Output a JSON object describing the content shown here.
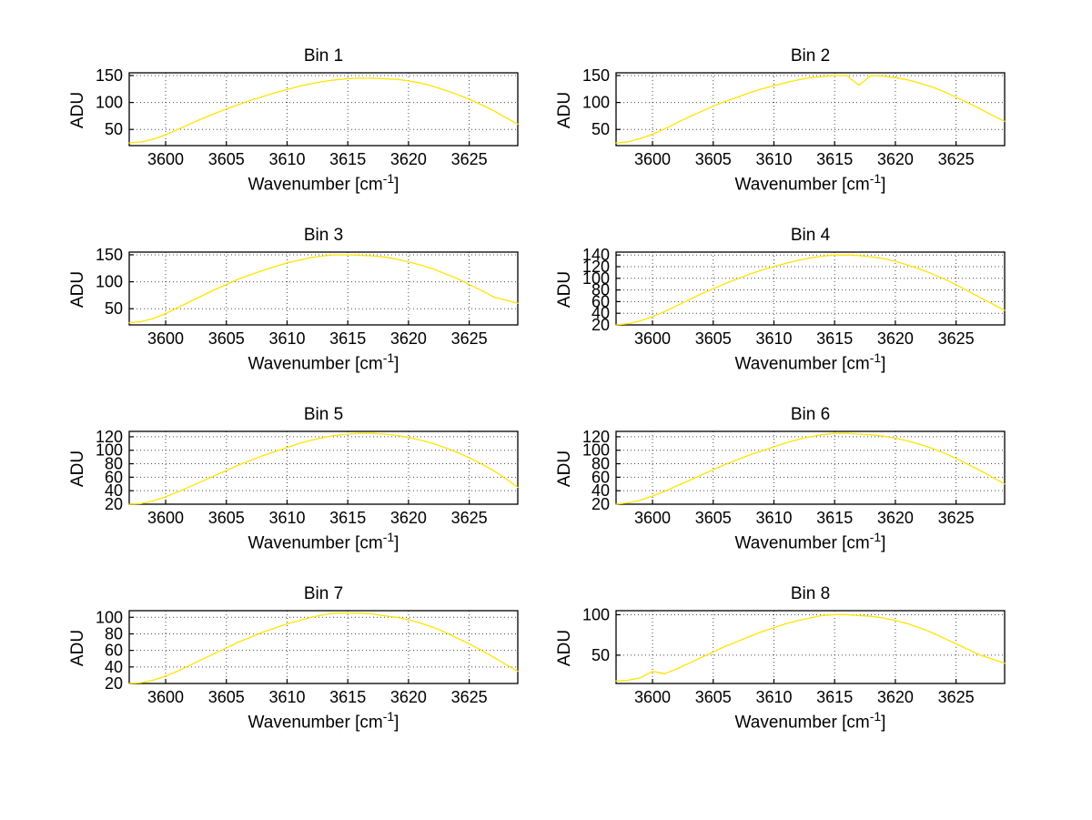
{
  "figure": {
    "background": "#ffffff"
  },
  "labels": {
    "xlabel_prefix": "Wavenumber [cm",
    "xlabel_sup": "-1",
    "xlabel_suffix": "]"
  },
  "chart_data": [
    {
      "type": "line",
      "title": "Bin 1",
      "xlabel": "Wavenumber [cm^-1]",
      "ylabel": "ADU",
      "xlim": [
        3597,
        3629
      ],
      "ylim": [
        20,
        155
      ],
      "xticks": [
        3600,
        3605,
        3610,
        3615,
        3620,
        3625
      ],
      "yticks": [
        50,
        100,
        150
      ],
      "grid": true,
      "line_color": "#ffe400",
      "x": [
        3597,
        3598,
        3599,
        3600,
        3601,
        3602,
        3603,
        3604,
        3605,
        3606,
        3607,
        3608,
        3609,
        3610,
        3611,
        3612,
        3613,
        3614,
        3615,
        3616,
        3617,
        3618,
        3619,
        3620,
        3621,
        3622,
        3623,
        3624,
        3625,
        3626,
        3627,
        3628,
        3629
      ],
      "y": [
        25,
        27,
        32,
        40,
        50,
        60,
        70,
        79,
        88,
        96,
        104,
        111,
        118,
        124,
        130,
        135,
        139,
        142,
        144,
        145,
        145,
        144,
        143,
        140,
        136,
        130,
        123,
        115,
        106,
        96,
        85,
        72,
        60
      ]
    },
    {
      "type": "line",
      "title": "Bin 2",
      "xlabel": "Wavenumber [cm^-1]",
      "ylabel": "ADU",
      "xlim": [
        3597,
        3629
      ],
      "ylim": [
        20,
        155
      ],
      "xticks": [
        3600,
        3605,
        3610,
        3615,
        3620,
        3625
      ],
      "yticks": [
        50,
        100,
        150
      ],
      "grid": true,
      "line_color": "#ffe400",
      "x": [
        3597,
        3598,
        3599,
        3600,
        3601,
        3602,
        3603,
        3604,
        3605,
        3606,
        3607,
        3608,
        3609,
        3610,
        3611,
        3612,
        3613,
        3614,
        3615,
        3616,
        3617,
        3618,
        3619,
        3620,
        3621,
        3622,
        3623,
        3624,
        3625,
        3626,
        3627,
        3628,
        3629
      ],
      "y": [
        25,
        27,
        33,
        41,
        51,
        62,
        73,
        83,
        93,
        102,
        110,
        118,
        125,
        131,
        137,
        142,
        146,
        148,
        150,
        150,
        132,
        150,
        149,
        146,
        142,
        136,
        129,
        120,
        110,
        99,
        88,
        76,
        65
      ]
    },
    {
      "type": "line",
      "title": "Bin 3",
      "xlabel": "Wavenumber [cm^-1]",
      "ylabel": "ADU",
      "xlim": [
        3597,
        3629
      ],
      "ylim": [
        20,
        155
      ],
      "xticks": [
        3600,
        3605,
        3610,
        3615,
        3620,
        3625
      ],
      "yticks": [
        50,
        100,
        150
      ],
      "grid": true,
      "line_color": "#ffe400",
      "x": [
        3597,
        3598,
        3599,
        3600,
        3601,
        3602,
        3603,
        3604,
        3605,
        3606,
        3607,
        3608,
        3609,
        3610,
        3611,
        3612,
        3613,
        3614,
        3615,
        3616,
        3617,
        3618,
        3619,
        3620,
        3621,
        3622,
        3623,
        3624,
        3625,
        3626,
        3627,
        3628,
        3629
      ],
      "y": [
        24,
        26,
        32,
        41,
        52,
        63,
        74,
        85,
        95,
        105,
        113,
        121,
        128,
        135,
        140,
        145,
        148,
        150,
        150,
        149,
        148,
        146,
        142,
        137,
        131,
        124,
        115,
        106,
        95,
        84,
        72,
        66,
        60
      ]
    },
    {
      "type": "line",
      "title": "Bin 4",
      "xlabel": "Wavenumber [cm^-1]",
      "ylabel": "ADU",
      "xlim": [
        3597,
        3629
      ],
      "ylim": [
        20,
        145
      ],
      "xticks": [
        3600,
        3605,
        3610,
        3615,
        3620,
        3625
      ],
      "yticks": [
        20,
        40,
        60,
        80,
        100,
        120,
        140
      ],
      "grid": true,
      "line_color": "#ffe400",
      "x": [
        3597,
        3598,
        3599,
        3600,
        3601,
        3602,
        3603,
        3604,
        3605,
        3606,
        3607,
        3608,
        3609,
        3610,
        3611,
        3612,
        3613,
        3614,
        3615,
        3616,
        3617,
        3618,
        3619,
        3620,
        3621,
        3622,
        3623,
        3624,
        3625,
        3626,
        3627,
        3628,
        3629
      ],
      "y": [
        20,
        22,
        27,
        34,
        43,
        53,
        63,
        73,
        82,
        91,
        99,
        107,
        114,
        120,
        126,
        131,
        135,
        138,
        140,
        140,
        139,
        137,
        134,
        129,
        123,
        116,
        108,
        99,
        89,
        78,
        67,
        56,
        45
      ]
    },
    {
      "type": "line",
      "title": "Bin 5",
      "xlabel": "Wavenumber [cm^-1]",
      "ylabel": "ADU",
      "xlim": [
        3597,
        3629
      ],
      "ylim": [
        20,
        128
      ],
      "xticks": [
        3600,
        3605,
        3610,
        3615,
        3620,
        3625
      ],
      "yticks": [
        20,
        40,
        60,
        80,
        100,
        120
      ],
      "grid": true,
      "line_color": "#ffe400",
      "x": [
        3597,
        3598,
        3599,
        3600,
        3601,
        3602,
        3603,
        3604,
        3605,
        3606,
        3607,
        3608,
        3609,
        3610,
        3611,
        3612,
        3613,
        3614,
        3615,
        3616,
        3617,
        3618,
        3619,
        3620,
        3621,
        3622,
        3623,
        3624,
        3625,
        3626,
        3627,
        3628,
        3629
      ],
      "y": [
        20,
        21,
        25,
        31,
        38,
        46,
        54,
        62,
        70,
        78,
        85,
        92,
        98,
        104,
        110,
        115,
        119,
        122,
        124,
        125,
        125,
        124,
        122,
        119,
        115,
        110,
        104,
        97,
        89,
        80,
        70,
        58,
        45
      ]
    },
    {
      "type": "line",
      "title": "Bin 6",
      "xlabel": "Wavenumber [cm^-1]",
      "ylabel": "ADU",
      "xlim": [
        3597,
        3629
      ],
      "ylim": [
        20,
        128
      ],
      "xticks": [
        3600,
        3605,
        3610,
        3615,
        3620,
        3625
      ],
      "yticks": [
        20,
        40,
        60,
        80,
        100,
        120
      ],
      "grid": true,
      "line_color": "#ffe400",
      "x": [
        3597,
        3598,
        3599,
        3600,
        3601,
        3602,
        3603,
        3604,
        3605,
        3606,
        3607,
        3608,
        3609,
        3610,
        3611,
        3612,
        3613,
        3614,
        3615,
        3616,
        3617,
        3618,
        3619,
        3620,
        3621,
        3622,
        3623,
        3624,
        3625,
        3626,
        3627,
        3628,
        3629
      ],
      "y": [
        20,
        22,
        26,
        32,
        39,
        47,
        55,
        63,
        71,
        79,
        86,
        93,
        99,
        105,
        111,
        116,
        120,
        123,
        125,
        125,
        124,
        123,
        121,
        118,
        114,
        109,
        103,
        96,
        88,
        79,
        70,
        60,
        50
      ]
    },
    {
      "type": "line",
      "title": "Bin 7",
      "xlabel": "Wavenumber [cm^-1]",
      "ylabel": "ADU",
      "xlim": [
        3597,
        3629
      ],
      "ylim": [
        20,
        108
      ],
      "xticks": [
        3600,
        3605,
        3610,
        3615,
        3620,
        3625
      ],
      "yticks": [
        20,
        40,
        60,
        80,
        100
      ],
      "grid": true,
      "line_color": "#ffe400",
      "x": [
        3597,
        3598,
        3599,
        3600,
        3601,
        3602,
        3603,
        3604,
        3605,
        3606,
        3607,
        3608,
        3609,
        3610,
        3611,
        3612,
        3613,
        3614,
        3615,
        3616,
        3617,
        3618,
        3619,
        3620,
        3621,
        3622,
        3623,
        3624,
        3625,
        3626,
        3627,
        3628,
        3629
      ],
      "y": [
        20,
        21,
        24,
        29,
        35,
        42,
        49,
        56,
        63,
        70,
        76,
        82,
        87,
        92,
        96,
        100,
        103,
        105,
        105,
        105,
        104,
        102,
        100,
        97,
        93,
        88,
        82,
        75,
        68,
        60,
        52,
        43,
        35
      ]
    },
    {
      "type": "line",
      "title": "Bin 8",
      "xlabel": "Wavenumber [cm^-1]",
      "ylabel": "ADU",
      "xlim": [
        3597,
        3629
      ],
      "ylim": [
        15,
        105
      ],
      "xticks": [
        3600,
        3605,
        3610,
        3615,
        3620,
        3625
      ],
      "yticks": [
        50,
        100
      ],
      "grid": true,
      "line_color": "#ffe400",
      "x": [
        3597,
        3598,
        3599,
        3600,
        3601,
        3602,
        3603,
        3604,
        3605,
        3606,
        3607,
        3608,
        3609,
        3610,
        3611,
        3612,
        3613,
        3614,
        3615,
        3616,
        3617,
        3618,
        3619,
        3620,
        3621,
        3622,
        3623,
        3624,
        3625,
        3626,
        3627,
        3628,
        3629
      ],
      "y": [
        18,
        19,
        22,
        30,
        27,
        33,
        40,
        47,
        54,
        61,
        67,
        73,
        79,
        84,
        89,
        93,
        96,
        99,
        100,
        100,
        99,
        98,
        96,
        93,
        89,
        84,
        78,
        71,
        64,
        57,
        50,
        45,
        40
      ]
    }
  ]
}
